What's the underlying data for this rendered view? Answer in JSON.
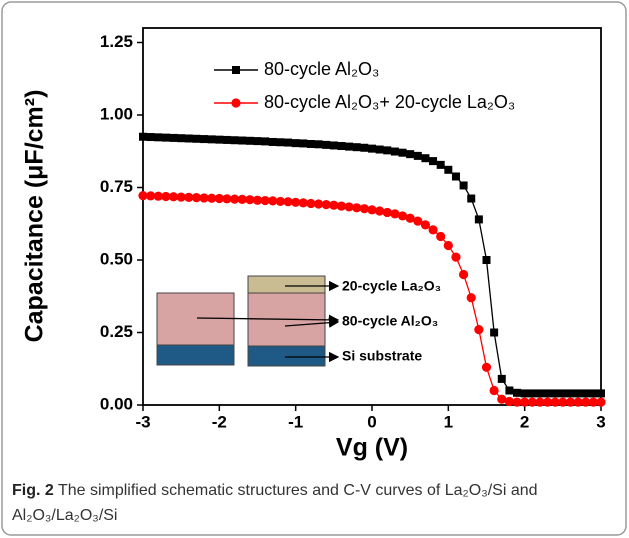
{
  "chart_data": {
    "type": "line",
    "xlabel": "Vg (V)",
    "ylabel": "Capacitance (μF/cm²)",
    "x": [
      -3.0,
      -2.9,
      -2.8,
      -2.7,
      -2.6,
      -2.5,
      -2.4,
      -2.3,
      -2.2,
      -2.1,
      -2.0,
      -1.9,
      -1.8,
      -1.7,
      -1.6,
      -1.5,
      -1.4,
      -1.3,
      -1.2,
      -1.1,
      -1.0,
      -0.9,
      -0.8,
      -0.7,
      -0.6,
      -0.5,
      -0.4,
      -0.3,
      -0.2,
      -0.1,
      0.0,
      0.1,
      0.2,
      0.3,
      0.4,
      0.5,
      0.6,
      0.7,
      0.8,
      0.9,
      1.0,
      1.1,
      1.2,
      1.3,
      1.4,
      1.5,
      1.6,
      1.7,
      1.8,
      1.9,
      2.0,
      2.1,
      2.2,
      2.3,
      2.4,
      2.5,
      2.6,
      2.7,
      2.8,
      2.9,
      3.0
    ],
    "series": [
      {
        "name": "80-cycle Al₂O₃",
        "color": "#000000",
        "marker": "square",
        "values": [
          0.925,
          0.924,
          0.923,
          0.922,
          0.921,
          0.92,
          0.919,
          0.918,
          0.917,
          0.916,
          0.915,
          0.914,
          0.913,
          0.912,
          0.911,
          0.91,
          0.909,
          0.907,
          0.906,
          0.905,
          0.903,
          0.902,
          0.9,
          0.899,
          0.897,
          0.895,
          0.893,
          0.891,
          0.889,
          0.887,
          0.884,
          0.881,
          0.878,
          0.874,
          0.87,
          0.865,
          0.859,
          0.851,
          0.841,
          0.828,
          0.811,
          0.788,
          0.757,
          0.712,
          0.64,
          0.5,
          0.25,
          0.09,
          0.05,
          0.042,
          0.04,
          0.04,
          0.04,
          0.04,
          0.04,
          0.04,
          0.04,
          0.04,
          0.04,
          0.04,
          0.04
        ]
      },
      {
        "name": "80-cycle Al₂O₃+ 20-cycle La₂O₃",
        "color": "#ff0000",
        "marker": "circle",
        "values": [
          0.722,
          0.721,
          0.72,
          0.719,
          0.718,
          0.717,
          0.716,
          0.715,
          0.714,
          0.713,
          0.712,
          0.711,
          0.71,
          0.709,
          0.708,
          0.706,
          0.705,
          0.704,
          0.702,
          0.701,
          0.699,
          0.697,
          0.695,
          0.693,
          0.691,
          0.689,
          0.686,
          0.683,
          0.68,
          0.677,
          0.673,
          0.669,
          0.664,
          0.659,
          0.652,
          0.644,
          0.634,
          0.621,
          0.604,
          0.581,
          0.55,
          0.51,
          0.45,
          0.37,
          0.26,
          0.13,
          0.05,
          0.02,
          0.012,
          0.01,
          0.01,
          0.01,
          0.01,
          0.01,
          0.01,
          0.01,
          0.01,
          0.01,
          0.01,
          0.01,
          0.01
        ]
      }
    ],
    "xlim": [
      -3,
      3
    ],
    "xticks": [
      -3,
      -2,
      -1,
      0,
      1,
      2,
      3
    ],
    "ylim": [
      0,
      1.3
    ],
    "yticks": [
      {
        "value": 0,
        "label": "0.00"
      },
      0.25,
      {
        "value": 0.5,
        "label": "0.50"
      },
      0.75,
      {
        "value": 1,
        "label": "1.00"
      },
      1.25
    ],
    "legend": "upper right",
    "inset_labels": [
      "20-cycle La₂O₃",
      "80-cycle Al₂O₃",
      "Si substrate"
    ]
  },
  "figure_caption": {
    "label": "Fig. 2",
    "text": "The simplified schematic structures and C-V curves of La₂O₃/Si and Al₂O₃/La₂O₃/Si"
  }
}
